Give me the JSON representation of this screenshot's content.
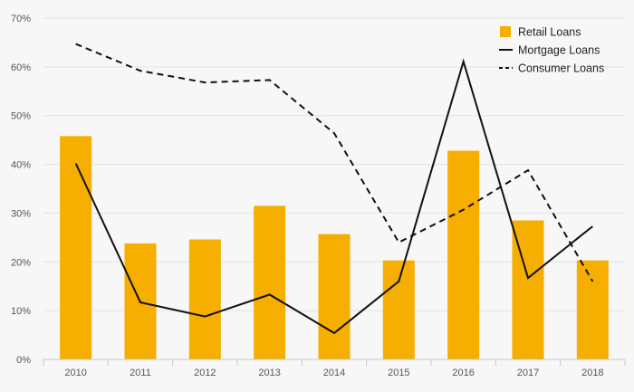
{
  "chart_data": {
    "type": "bar",
    "categories": [
      "2010",
      "2011",
      "2012",
      "2013",
      "2014",
      "2015",
      "2016",
      "2017",
      "2018"
    ],
    "series": [
      {
        "name": "Retail Loans",
        "kind": "bar",
        "color": "#f6ae00",
        "values": [
          45.8,
          23.8,
          24.6,
          31.5,
          25.7,
          20.3,
          42.8,
          28.5,
          20.3
        ]
      },
      {
        "name": "Mortgage Loans",
        "kind": "line",
        "style": "solid",
        "color": "#111111",
        "values": [
          40.2,
          11.7,
          8.8,
          13.3,
          5.4,
          16.0,
          61.1,
          16.7,
          27.3
        ]
      },
      {
        "name": "Consumer Loans",
        "kind": "line",
        "style": "dashed",
        "color": "#111111",
        "values": [
          64.7,
          59.2,
          56.8,
          57.3,
          46.4,
          24.0,
          30.7,
          38.8,
          16.0
        ]
      }
    ],
    "y_ticks": [
      "0%",
      "10%",
      "20%",
      "30%",
      "40%",
      "50%",
      "60%",
      "70%"
    ],
    "ylim": [
      0,
      70
    ],
    "title": "",
    "xlabel": "",
    "ylabel": "",
    "grid": true,
    "legend_position": "top-right"
  }
}
